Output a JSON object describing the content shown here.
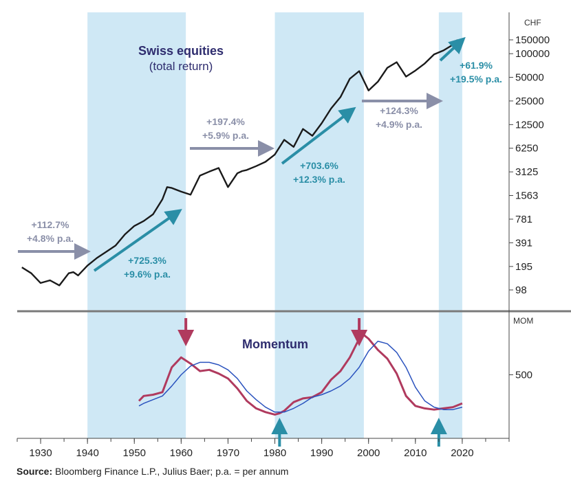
{
  "chart_data": [
    {
      "type": "line",
      "title": "Swiss equities",
      "subtitle": "(total return)",
      "y_unit": "CHF",
      "scale": "log",
      "y_ticks": [
        "150000",
        "100000",
        "50000",
        "25000",
        "12500",
        "6250",
        "3125",
        "1563",
        "781",
        "391",
        "195",
        "98"
      ],
      "y_tick_values": [
        150000,
        100000,
        50000,
        25000,
        12500,
        6250,
        3125,
        1563,
        781,
        391,
        195,
        98
      ],
      "series": [
        {
          "x": [
            1926,
            1928,
            1930,
            1932,
            1934,
            1936,
            1937,
            1938,
            1940,
            1942,
            1944,
            1946,
            1948,
            1950,
            1952,
            1954,
            1956,
            1957,
            1958,
            1960,
            1962,
            1964,
            1966,
            1968,
            1970,
            1972,
            1973,
            1974,
            1976,
            1978,
            1980,
            1982,
            1984,
            1986,
            1988,
            1990,
            1992,
            1994,
            1996,
            1998,
            2000,
            2002,
            2004,
            2006,
            2008,
            2010,
            2012,
            2014,
            2016,
            2018,
            2019
          ],
          "values": [
            190,
            160,
            120,
            130,
            112,
            160,
            165,
            150,
            200,
            250,
            300,
            360,
            500,
            640,
            740,
            900,
            1400,
            2000,
            1950,
            1750,
            1600,
            2800,
            3150,
            3500,
            2000,
            3000,
            3200,
            3300,
            3700,
            4200,
            5200,
            8000,
            6500,
            11000,
            9000,
            13000,
            20000,
            28000,
            48000,
            60000,
            34000,
            44000,
            66000,
            78000,
            51000,
            61000,
            75000,
            98000,
            110000,
            130000,
            150000
          ]
        }
      ],
      "periods": [
        {
          "start": 1940,
          "end": 1961,
          "label_line1": "+725.3%",
          "label_line2": "+9.6% p.a.",
          "highlight": true
        },
        {
          "start": 1961,
          "end": 1980,
          "label_line1": "+197.4%",
          "label_line2": "+5.9% p.a.",
          "highlight": false
        },
        {
          "start": 1980,
          "end": 1999,
          "label_line1": "+703.6%",
          "label_line2": "+12.3% p.a.",
          "highlight": true
        },
        {
          "start": 1999,
          "end": 2015,
          "label_line1": "+124.3%",
          "label_line2": "+4.9% p.a.",
          "highlight": false
        },
        {
          "start": 2015,
          "end": 2020,
          "label_line1": "+61.9%",
          "label_line2": "+19.5% p.a.",
          "highlight": true
        },
        {
          "start": 1926,
          "end": 1940,
          "label_line1": "+112.7%",
          "label_line2": "+4.8% p.a.",
          "highlight": false
        }
      ]
    },
    {
      "type": "line",
      "title": "Momentum",
      "y_unit": "MOM",
      "y_ticks": [
        "500"
      ],
      "y_tick_values": [
        500
      ],
      "ylim": [
        0,
        1000
      ],
      "xlim": [
        1925,
        2030
      ],
      "x_ticks": [
        1930,
        1940,
        1950,
        1960,
        1970,
        1980,
        1990,
        2000,
        2010,
        2020
      ],
      "series": [
        {
          "color": "#b03a5e",
          "x": [
            1951,
            1952,
            1954,
            1956,
            1958,
            1960,
            1962,
            1964,
            1966,
            1968,
            1970,
            1972,
            1974,
            1976,
            1978,
            1980,
            1981,
            1982,
            1984,
            1986,
            1988,
            1990,
            1992,
            1994,
            1996,
            1998,
            1999,
            2000,
            2002,
            2004,
            2006,
            2008,
            2010,
            2012,
            2014,
            2016,
            2018,
            2020
          ],
          "values": [
            290,
            330,
            340,
            360,
            560,
            640,
            590,
            530,
            540,
            510,
            470,
            390,
            290,
            230,
            200,
            180,
            190,
            210,
            280,
            310,
            320,
            360,
            460,
            530,
            640,
            790,
            820,
            790,
            700,
            630,
            510,
            330,
            250,
            230,
            220,
            230,
            240,
            270
          ]
        },
        {
          "color": "#2a52be",
          "x": [
            1951,
            1952,
            1954,
            1956,
            1958,
            1960,
            1962,
            1964,
            1966,
            1968,
            1970,
            1972,
            1974,
            1976,
            1978,
            1980,
            1982,
            1984,
            1986,
            1988,
            1990,
            1992,
            1994,
            1996,
            1998,
            2000,
            2002,
            2004,
            2006,
            2008,
            2010,
            2012,
            2014,
            2016,
            2018,
            2020
          ],
          "values": [
            250,
            270,
            300,
            330,
            410,
            500,
            570,
            600,
            600,
            580,
            540,
            470,
            370,
            300,
            240,
            200,
            200,
            230,
            270,
            320,
            340,
            370,
            410,
            470,
            560,
            690,
            770,
            750,
            680,
            560,
            400,
            290,
            240,
            220,
            220,
            240
          ]
        }
      ],
      "down_arrows": [
        1961,
        1998
      ],
      "up_arrows": [
        1981,
        2015
      ]
    }
  ],
  "source_label": "Source:",
  "source_text": " Bloomberg Finance L.P., Julius Baer; p.a. = per annum",
  "colors": {
    "band": "#cfe8f5",
    "price_line": "#1a1a1a",
    "title": "#2e2c6e",
    "teal": "#2a8ea6",
    "gray_arrow": "#8a8fa8",
    "gray_text": "#8a8fa8",
    "divider": "#7a7a7a"
  }
}
